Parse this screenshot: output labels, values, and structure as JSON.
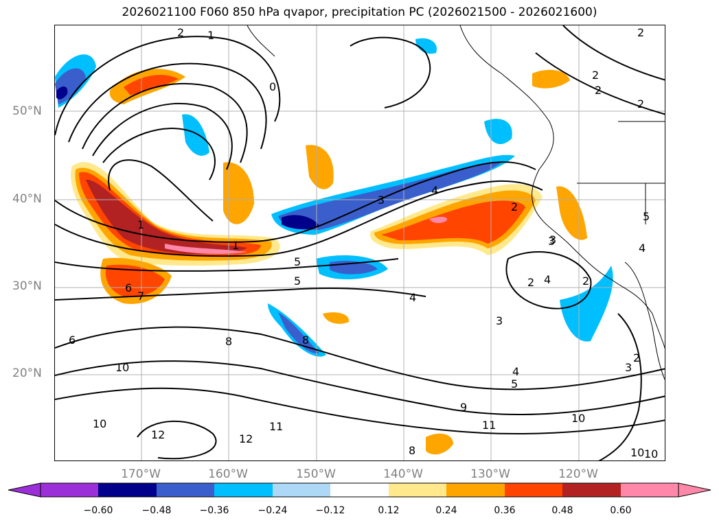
{
  "title": "2026021100 F060 850 hPa qvapor, precipitation PC (2026021500 - 2026021600)",
  "lat_labels": [
    "50°N",
    "40°N",
    "30°N",
    "20°N"
  ],
  "lon_labels": [
    "170°W",
    "160°W",
    "150°W",
    "140°W",
    "130°W",
    "120°W"
  ],
  "colorbar": {
    "ticks": [
      "−0.60",
      "−0.48",
      "−0.36",
      "−0.24",
      "−0.12",
      "0.12",
      "0.24",
      "0.36",
      "0.48",
      "0.60"
    ],
    "colors": [
      "#9b30d9",
      "#00008b",
      "#3a5fcd",
      "#00bfff",
      "#add8f6",
      "#ffffff",
      "#ffe98c",
      "#ffa500",
      "#ff4500",
      "#b22222",
      "#ff88aa",
      "#ff88aa"
    ]
  },
  "contour_labels": [
    "2",
    "1",
    "0",
    "2",
    "2",
    "2",
    "2",
    "1",
    "1",
    "3",
    "4",
    "2",
    "3",
    "5",
    "5",
    "6",
    "7",
    "4",
    "3",
    "4",
    "2",
    "6",
    "8",
    "8",
    "10",
    "3",
    "2",
    "4",
    "5",
    "9",
    "11",
    "10",
    "10",
    "12",
    "12",
    "11",
    "8",
    "10",
    "10",
    "4",
    "3",
    "2",
    "5"
  ],
  "colors": {
    "pink": "#ff88aa",
    "darkred": "#b22222",
    "red": "#ff4500",
    "orange": "#ffa500",
    "yellow": "#ffe98c",
    "lightblue": "#add8f6",
    "blue": "#00bfff",
    "medblue": "#3a5fcd",
    "navy": "#00008b",
    "purple": "#9b30d9"
  }
}
